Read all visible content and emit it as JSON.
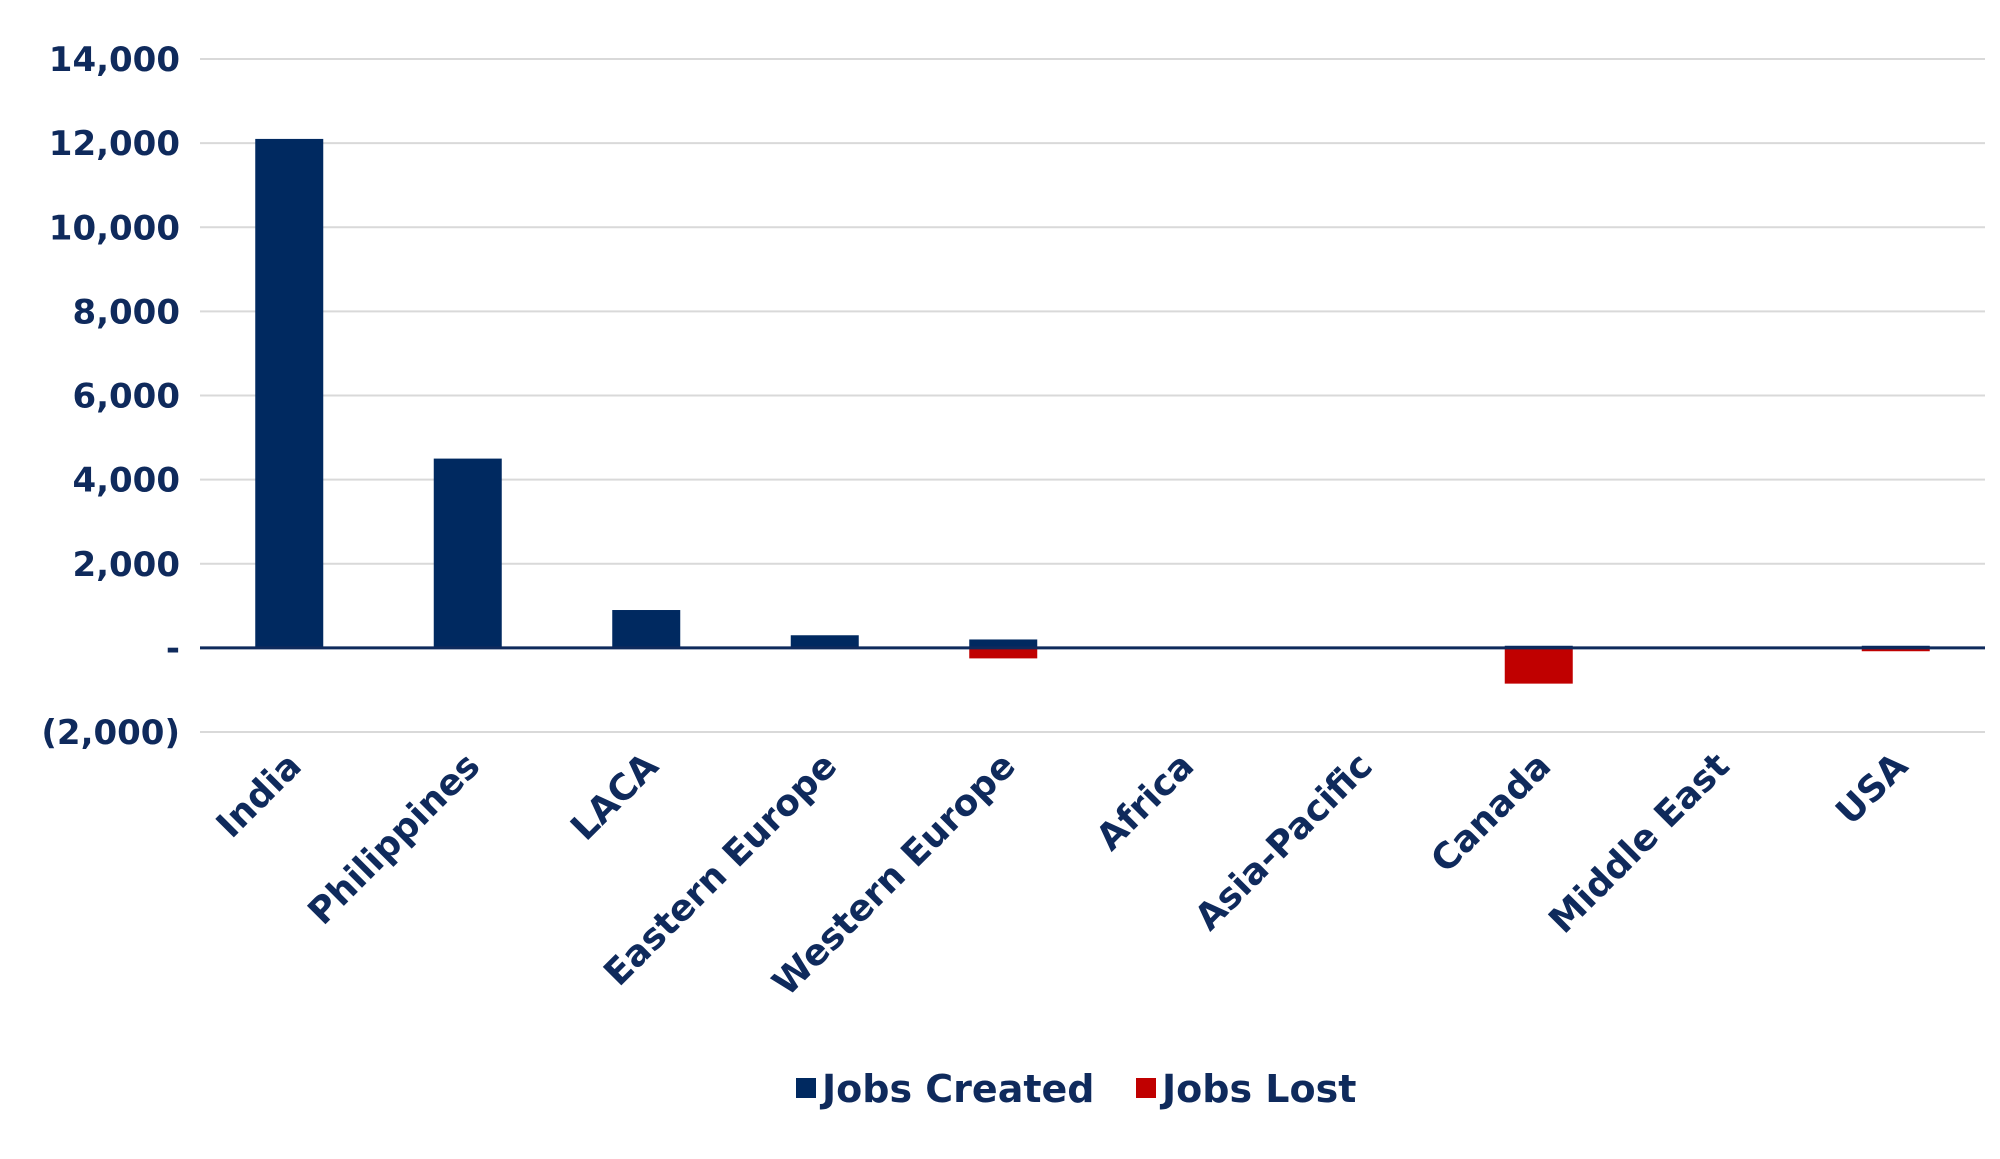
{
  "chart_data": {
    "type": "bar",
    "categories": [
      "India",
      "Philippines",
      "LACA",
      "Eastern Europe",
      "Western Europe",
      "Africa",
      "Asia-Pacific",
      "Canada",
      "Middle East",
      "USA"
    ],
    "series": [
      {
        "name": "Jobs Created",
        "color": "#002960",
        "values": [
          12100,
          4500,
          900,
          300,
          200,
          0,
          0,
          50,
          0,
          50
        ]
      },
      {
        "name": "Jobs Lost",
        "color": "#c00000",
        "values": [
          0,
          0,
          0,
          0,
          -250,
          0,
          0,
          -850,
          0,
          -80
        ]
      }
    ],
    "yticks": [
      {
        "value": 14000,
        "label": "14,000"
      },
      {
        "value": 12000,
        "label": "12,000"
      },
      {
        "value": 10000,
        "label": "10,000"
      },
      {
        "value": 8000,
        "label": "8,000"
      },
      {
        "value": 6000,
        "label": "6,000"
      },
      {
        "value": 4000,
        "label": "4,000"
      },
      {
        "value": 2000,
        "label": "2,000"
      },
      {
        "value": 0,
        "label": "-"
      },
      {
        "value": -2000,
        "label": "(2,000)"
      }
    ],
    "ylim": [
      -2000,
      14000
    ],
    "grid": true,
    "legend_position": "bottom",
    "title": "",
    "xlabel": "",
    "ylabel": ""
  }
}
